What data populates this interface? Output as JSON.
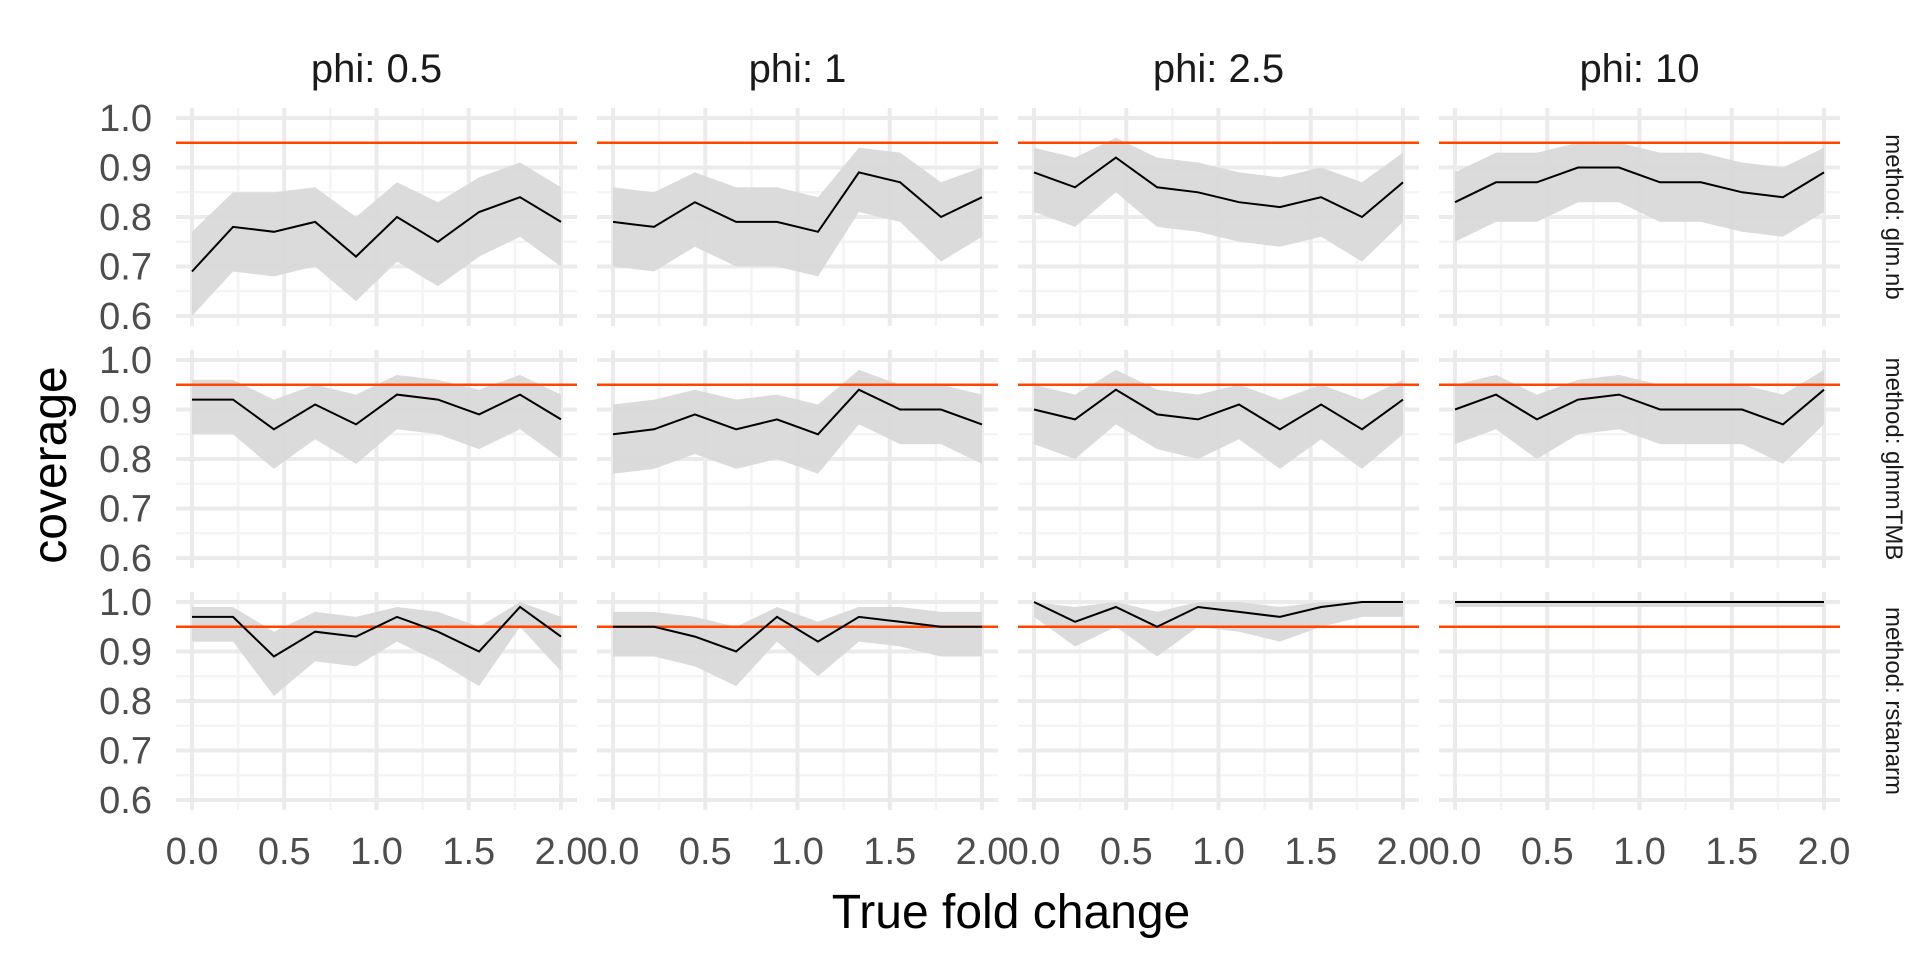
{
  "colors": {
    "background": "#ffffff",
    "panel_grid_major": "#ebebeb",
    "panel_grid_minor": "#f4f4f4",
    "reference_line": "#ff4500",
    "ribbon": "#d9d9d9",
    "line": "#000000",
    "text": "#000000",
    "tick_text": "#4d4d4d"
  },
  "chart_data": {
    "type": "line",
    "title": "",
    "xlabel": "True fold change",
    "ylabel": "coverage",
    "xlim": [
      0,
      2
    ],
    "ylim": [
      0.6,
      1.0
    ],
    "x_ticks": [
      0.0,
      0.5,
      1.0,
      1.5,
      2.0
    ],
    "x_tick_labels": [
      "0.0",
      "0.5",
      "1.0",
      "1.5",
      "2.0"
    ],
    "y_ticks": [
      0.6,
      0.7,
      0.8,
      0.9,
      1.0
    ],
    "y_tick_labels": [
      "0.6",
      "0.7",
      "0.8",
      "0.9",
      "1.0"
    ],
    "reference_line_y": 0.95,
    "grid": true,
    "facet_columns": [
      "phi: 0.5",
      "phi: 1",
      "phi: 2.5",
      "phi: 10"
    ],
    "facet_rows": [
      "method: glm.nb",
      "method: glmmTMB",
      "method: rstanarm"
    ],
    "x": [
      0.0,
      0.222,
      0.444,
      0.667,
      0.889,
      1.111,
      1.333,
      1.556,
      1.778,
      2.0
    ],
    "panels": [
      {
        "row": 0,
        "col": 0,
        "y": [
          0.69,
          0.78,
          0.77,
          0.79,
          0.72,
          0.8,
          0.75,
          0.81,
          0.84,
          0.79
        ],
        "lower": [
          0.6,
          0.69,
          0.68,
          0.7,
          0.63,
          0.71,
          0.66,
          0.72,
          0.76,
          0.7
        ],
        "upper": [
          0.77,
          0.85,
          0.85,
          0.86,
          0.8,
          0.87,
          0.83,
          0.88,
          0.91,
          0.86
        ]
      },
      {
        "row": 0,
        "col": 1,
        "y": [
          0.79,
          0.78,
          0.83,
          0.79,
          0.79,
          0.77,
          0.89,
          0.87,
          0.8,
          0.84
        ],
        "lower": [
          0.7,
          0.69,
          0.74,
          0.7,
          0.7,
          0.68,
          0.81,
          0.79,
          0.71,
          0.76
        ],
        "upper": [
          0.86,
          0.85,
          0.89,
          0.86,
          0.86,
          0.84,
          0.94,
          0.93,
          0.87,
          0.9
        ]
      },
      {
        "row": 0,
        "col": 2,
        "y": [
          0.89,
          0.86,
          0.92,
          0.86,
          0.85,
          0.83,
          0.82,
          0.84,
          0.8,
          0.87
        ],
        "lower": [
          0.81,
          0.78,
          0.85,
          0.78,
          0.77,
          0.75,
          0.74,
          0.76,
          0.71,
          0.79
        ],
        "upper": [
          0.94,
          0.92,
          0.96,
          0.92,
          0.91,
          0.89,
          0.88,
          0.9,
          0.87,
          0.93
        ]
      },
      {
        "row": 0,
        "col": 3,
        "y": [
          0.83,
          0.87,
          0.87,
          0.9,
          0.9,
          0.87,
          0.87,
          0.85,
          0.84,
          0.89
        ],
        "lower": [
          0.75,
          0.79,
          0.79,
          0.83,
          0.83,
          0.79,
          0.79,
          0.77,
          0.76,
          0.81
        ],
        "upper": [
          0.89,
          0.93,
          0.93,
          0.95,
          0.95,
          0.93,
          0.93,
          0.91,
          0.9,
          0.94
        ]
      },
      {
        "row": 1,
        "col": 0,
        "y": [
          0.92,
          0.92,
          0.86,
          0.91,
          0.87,
          0.93,
          0.92,
          0.89,
          0.93,
          0.88
        ],
        "lower": [
          0.85,
          0.85,
          0.78,
          0.84,
          0.79,
          0.86,
          0.85,
          0.82,
          0.86,
          0.8
        ],
        "upper": [
          0.96,
          0.96,
          0.92,
          0.95,
          0.93,
          0.97,
          0.96,
          0.94,
          0.97,
          0.93
        ]
      },
      {
        "row": 1,
        "col": 1,
        "y": [
          0.85,
          0.86,
          0.89,
          0.86,
          0.88,
          0.85,
          0.94,
          0.9,
          0.9,
          0.87
        ],
        "lower": [
          0.77,
          0.78,
          0.81,
          0.78,
          0.8,
          0.77,
          0.87,
          0.83,
          0.83,
          0.79
        ],
        "upper": [
          0.91,
          0.92,
          0.94,
          0.92,
          0.93,
          0.91,
          0.98,
          0.95,
          0.95,
          0.93
        ]
      },
      {
        "row": 1,
        "col": 2,
        "y": [
          0.9,
          0.88,
          0.94,
          0.89,
          0.88,
          0.91,
          0.86,
          0.91,
          0.86,
          0.92
        ],
        "lower": [
          0.83,
          0.8,
          0.87,
          0.82,
          0.8,
          0.84,
          0.78,
          0.84,
          0.78,
          0.85
        ],
        "upper": [
          0.95,
          0.93,
          0.98,
          0.94,
          0.93,
          0.95,
          0.92,
          0.95,
          0.92,
          0.96
        ]
      },
      {
        "row": 1,
        "col": 3,
        "y": [
          0.9,
          0.93,
          0.88,
          0.92,
          0.93,
          0.9,
          0.9,
          0.9,
          0.87,
          0.94
        ],
        "lower": [
          0.83,
          0.86,
          0.8,
          0.85,
          0.86,
          0.83,
          0.83,
          0.83,
          0.79,
          0.87
        ],
        "upper": [
          0.95,
          0.97,
          0.93,
          0.96,
          0.97,
          0.95,
          0.95,
          0.95,
          0.93,
          0.98
        ]
      },
      {
        "row": 2,
        "col": 0,
        "y": [
          0.97,
          0.97,
          0.89,
          0.94,
          0.93,
          0.97,
          0.94,
          0.9,
          0.99,
          0.93
        ],
        "lower": [
          0.92,
          0.92,
          0.81,
          0.88,
          0.87,
          0.92,
          0.88,
          0.83,
          0.95,
          0.86
        ],
        "upper": [
          0.99,
          0.99,
          0.94,
          0.98,
          0.97,
          0.99,
          0.98,
          0.95,
          1.0,
          0.97
        ]
      },
      {
        "row": 2,
        "col": 1,
        "y": [
          0.95,
          0.95,
          0.93,
          0.9,
          0.97,
          0.92,
          0.97,
          0.96,
          0.95,
          0.95
        ],
        "lower": [
          0.89,
          0.89,
          0.87,
          0.83,
          0.92,
          0.85,
          0.92,
          0.91,
          0.89,
          0.89
        ],
        "upper": [
          0.98,
          0.98,
          0.97,
          0.95,
          0.99,
          0.96,
          0.99,
          0.99,
          0.98,
          0.98
        ]
      },
      {
        "row": 2,
        "col": 2,
        "y": [
          1.0,
          0.96,
          0.99,
          0.95,
          0.99,
          0.98,
          0.97,
          0.99,
          1.0,
          1.0
        ],
        "lower": [
          0.97,
          0.91,
          0.95,
          0.89,
          0.95,
          0.94,
          0.92,
          0.95,
          0.97,
          0.97
        ],
        "upper": [
          1.0,
          0.99,
          1.0,
          0.98,
          1.0,
          1.0,
          0.99,
          1.0,
          1.0,
          1.0
        ]
      },
      {
        "row": 2,
        "col": 3,
        "y": [
          1.0,
          1.0,
          1.0,
          1.0,
          1.0,
          1.0,
          1.0,
          1.0,
          1.0,
          1.0
        ],
        "lower": [
          0.99,
          0.99,
          0.99,
          0.99,
          0.99,
          0.99,
          0.99,
          0.99,
          0.99,
          0.99
        ],
        "upper": [
          1.0,
          1.0,
          1.0,
          1.0,
          1.0,
          1.0,
          1.0,
          1.0,
          1.0,
          1.0
        ]
      }
    ]
  }
}
